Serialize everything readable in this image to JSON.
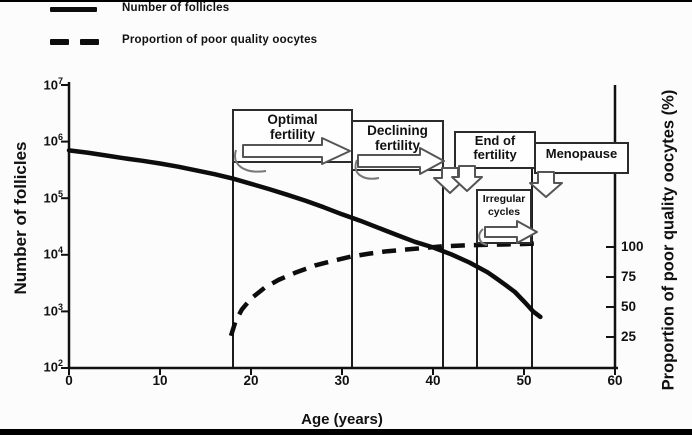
{
  "legend": {
    "items": [
      {
        "label": "Number of follicles",
        "line_style": "solid"
      },
      {
        "label": "Proportion of poor quality oocytes",
        "line_style": "dashed"
      }
    ]
  },
  "axes": {
    "x": {
      "title": "Age (years)",
      "ticks": [
        "0",
        "10",
        "20",
        "30",
        "40",
        "50",
        "60"
      ]
    },
    "left": {
      "title": "Number of follicles",
      "scale": "log",
      "ticks": [
        {
          "base": "10",
          "exp": "7"
        },
        {
          "base": "10",
          "exp": "6"
        },
        {
          "base": "10",
          "exp": "5"
        },
        {
          "base": "10",
          "exp": "4"
        },
        {
          "base": "10",
          "exp": "3"
        },
        {
          "base": "10",
          "exp": "2"
        }
      ]
    },
    "right": {
      "title": "Proportion of poor quality oocytes (%)",
      "ticks": [
        "100",
        "75",
        "50",
        "25"
      ]
    }
  },
  "stages": [
    {
      "label": "Optimal fertility"
    },
    {
      "label": "Declining fertility"
    },
    {
      "label": "End of fertility"
    },
    {
      "label": "Menopause"
    },
    {
      "label": "Irregular cycles"
    }
  ],
  "chart_data": {
    "type": "line",
    "title": "",
    "xlabel": "Age (years)",
    "ylabel_left": "Number of follicles",
    "ylabel_right": "Proportion of poor quality oocytes (%)",
    "x_range": [
      0,
      60
    ],
    "left_axis": {
      "scale": "log10",
      "range": [
        100,
        10000000
      ],
      "tick_values": [
        100,
        1000,
        10000,
        100000,
        1000000,
        10000000
      ]
    },
    "right_axis": {
      "scale": "linear",
      "tick_values": [
        25,
        50,
        75,
        100
      ]
    },
    "grid": false,
    "legend_position": "top-left",
    "series": [
      {
        "name": "Number of follicles",
        "axis": "left",
        "style": "solid",
        "points": [
          [
            0,
            700000
          ],
          [
            2,
            640000
          ],
          [
            4,
            570000
          ],
          [
            6,
            510000
          ],
          [
            8,
            460000
          ],
          [
            10,
            410000
          ],
          [
            12,
            360000
          ],
          [
            14,
            310000
          ],
          [
            16,
            265000
          ],
          [
            18,
            222000
          ],
          [
            20,
            180000
          ],
          [
            22,
            145000
          ],
          [
            24,
            115000
          ],
          [
            26,
            90000
          ],
          [
            28,
            69000
          ],
          [
            30,
            52000
          ],
          [
            32,
            40000
          ],
          [
            34,
            30000
          ],
          [
            36,
            22500
          ],
          [
            38,
            17000
          ],
          [
            40,
            13500
          ],
          [
            42,
            10200
          ],
          [
            44,
            7300
          ],
          [
            46,
            4900
          ],
          [
            47,
            3800
          ],
          [
            48,
            2900
          ],
          [
            49,
            2200
          ],
          [
            50,
            1500
          ],
          [
            51,
            1000
          ],
          [
            51.8,
            800
          ]
        ]
      },
      {
        "name": "Proportion of poor quality oocytes",
        "axis": "right",
        "style": "dashed",
        "points": [
          [
            17.8,
            26
          ],
          [
            18.3,
            38
          ],
          [
            19,
            48
          ],
          [
            20,
            57
          ],
          [
            21.5,
            66
          ],
          [
            23,
            72.5
          ],
          [
            25,
            79
          ],
          [
            27,
            84.5
          ],
          [
            29,
            88.5
          ],
          [
            31,
            92
          ],
          [
            33,
            94.5
          ],
          [
            35,
            96.5
          ],
          [
            38,
            98.5
          ],
          [
            41,
            100.5
          ],
          [
            44,
            101.5
          ],
          [
            47,
            102
          ],
          [
            50,
            102.5
          ],
          [
            52,
            103
          ]
        ]
      }
    ],
    "annotations": [
      {
        "label": "Optimal fertility",
        "age_range": [
          18,
          31
        ],
        "arrow": "right"
      },
      {
        "label": "Declining fertility",
        "age_range": [
          31,
          41
        ],
        "arrow": "right-then-down"
      },
      {
        "label": "End of fertility",
        "age_range": [
          41,
          45
        ],
        "arrow": "down"
      },
      {
        "label": "Irregular cycles",
        "age_range": [
          45,
          51
        ],
        "arrow": "right"
      },
      {
        "label": "Menopause",
        "age_range": [
          51,
          60
        ],
        "arrow": "down"
      }
    ]
  }
}
